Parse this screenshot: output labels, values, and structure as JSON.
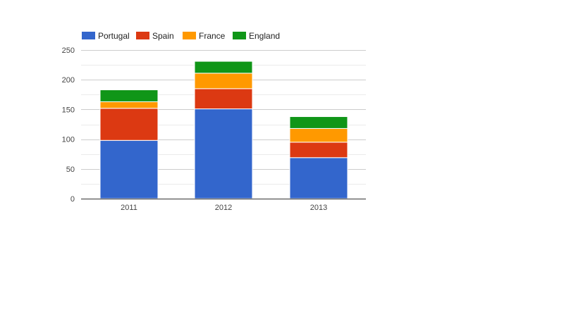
{
  "chart_data": {
    "type": "bar",
    "stacked": true,
    "categories": [
      "2011",
      "2012",
      "2013"
    ],
    "series": [
      {
        "name": "Portugal",
        "color": "#3366cc",
        "values": [
          98,
          151,
          69
        ]
      },
      {
        "name": "Spain",
        "color": "#dc3912",
        "values": [
          54,
          34,
          26
        ]
      },
      {
        "name": "France",
        "color": "#ff9900",
        "values": [
          11,
          26,
          23
        ]
      },
      {
        "name": "England",
        "color": "#109618",
        "values": [
          20,
          20,
          20
        ]
      }
    ],
    "ylim": [
      0,
      250
    ],
    "yticks": [
      "0",
      "50",
      "100",
      "150",
      "200",
      "250"
    ],
    "grid": true,
    "legend": "top-left",
    "title": "",
    "xlabel": "",
    "ylabel": ""
  }
}
